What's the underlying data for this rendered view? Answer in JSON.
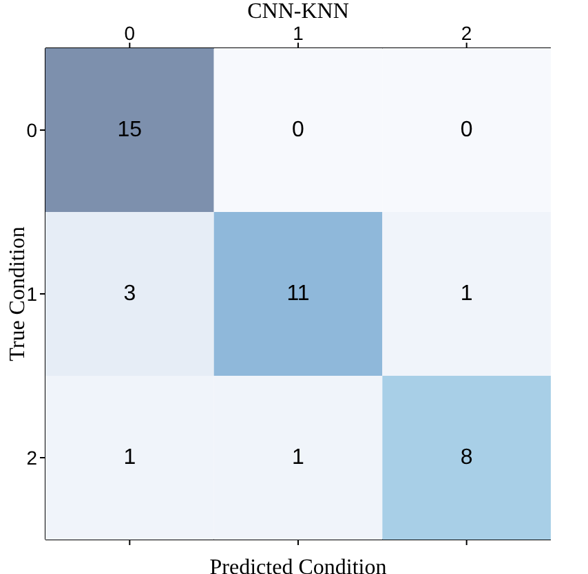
{
  "chart_data": {
    "type": "heatmap",
    "title": "CNN-KNN",
    "xlabel": "Predicted Condition",
    "ylabel": "True Condition",
    "categories": [
      "0",
      "1",
      "2"
    ],
    "y_categories": [
      "0",
      "1",
      "2"
    ],
    "cells": [
      [
        15,
        0,
        0
      ],
      [
        3,
        11,
        1
      ],
      [
        1,
        1,
        8
      ]
    ],
    "colors": [
      "#7d90ad",
      "#f7f9fd",
      "#f7f9fd",
      "#e6edf6",
      "#8fb8da",
      "#f0f4fa",
      "#f0f4fa",
      "#f0f4fa",
      "#a8cfe7"
    ],
    "data_labels": true,
    "grid": false
  }
}
